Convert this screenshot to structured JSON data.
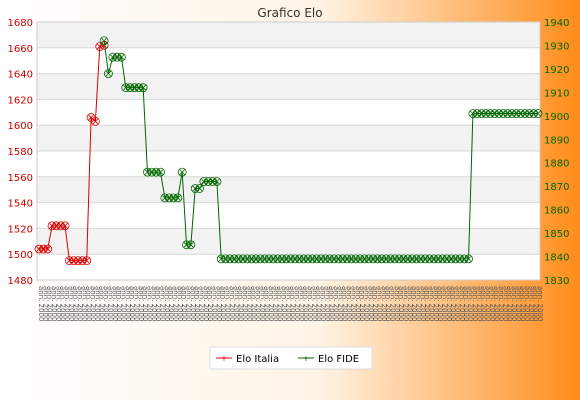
{
  "chart_data": {
    "type": "line",
    "title": "Grafico Elo",
    "xlabel": "",
    "ylabel": "",
    "grid": true,
    "legend_position": "bottom-center",
    "background": {
      "gradient_left": "#ffffff",
      "gradient_right": "#ff8c1a",
      "plot_bands": [
        "#f2f2f2",
        "#ffffff"
      ]
    },
    "y_left": {
      "min": 1480,
      "max": 1680,
      "ticks": [
        1480,
        1500,
        1520,
        1540,
        1560,
        1580,
        1600,
        1620,
        1640,
        1660,
        1680
      ],
      "color": "#cc0000"
    },
    "y_right": {
      "min": 1830,
      "max": 1940,
      "ticks": [
        1830,
        1840,
        1850,
        1860,
        1870,
        1880,
        1890,
        1900,
        1910,
        1920,
        1930,
        1940
      ],
      "color": "#006600"
    },
    "series": [
      {
        "name": "Elo Italia",
        "axis": "left",
        "color": "#dd0000",
        "values": [
          1504,
          1504,
          1504,
          1522,
          1522,
          1522,
          1522,
          1495,
          1495,
          1495,
          1495,
          1495,
          1606,
          1603,
          1661,
          1662,
          null,
          null,
          null,
          null,
          null,
          null,
          null,
          null,
          null,
          null,
          null,
          null,
          null,
          null,
          null,
          null,
          null,
          null,
          null,
          null,
          null,
          null,
          null,
          null,
          null,
          null,
          null,
          null,
          null,
          null,
          null,
          null,
          null,
          null,
          null,
          null,
          null,
          null,
          null,
          null,
          null,
          null,
          null,
          null,
          null,
          null,
          null,
          null,
          null,
          null,
          null,
          null,
          null,
          null,
          null,
          null,
          null,
          null,
          null,
          null,
          null,
          null,
          null,
          null,
          null,
          null,
          null,
          null,
          null,
          null,
          null,
          null,
          null,
          null,
          null,
          null,
          null,
          null,
          null,
          null,
          null,
          null,
          null,
          null,
          null,
          null,
          null,
          null,
          null
        ]
      },
      {
        "name": "Elo FIDE",
        "axis": "right",
        "color": "#006600",
        "values": [
          null,
          null,
          null,
          null,
          null,
          null,
          null,
          null,
          null,
          null,
          null,
          null,
          null,
          null,
          null,
          1932,
          1918,
          1925,
          1925,
          1925,
          1912,
          1912,
          1912,
          1912,
          1912,
          1876,
          1876,
          1876,
          1876,
          1865,
          1865,
          1865,
          1865,
          1876,
          1845,
          1845,
          1869,
          1869,
          1872,
          1872,
          1872,
          1872,
          1839,
          1839,
          1839,
          1839,
          1839,
          1839,
          1839,
          1839,
          1839,
          1839,
          1839,
          1839,
          1839,
          1839,
          1839,
          1839,
          1839,
          1839,
          1839,
          1839,
          1839,
          1839,
          1839,
          1839,
          1839,
          1839,
          1839,
          1839,
          1839,
          1839,
          1839,
          1839,
          1839,
          1839,
          1839,
          1839,
          1839,
          1839,
          1839,
          1839,
          1839,
          1839,
          1839,
          1839,
          1839,
          1839,
          1839,
          1839,
          1839,
          1839,
          1839,
          1839,
          1839,
          1839,
          1839,
          1839,
          1839,
          1839,
          1901,
          1901,
          1901,
          1901,
          1901,
          1901,
          1901,
          1901,
          1901,
          1901,
          1901,
          1901,
          1901,
          1901,
          1901,
          1901
        ]
      }
    ],
    "x_label_pattern": "ann. 2000"
  }
}
